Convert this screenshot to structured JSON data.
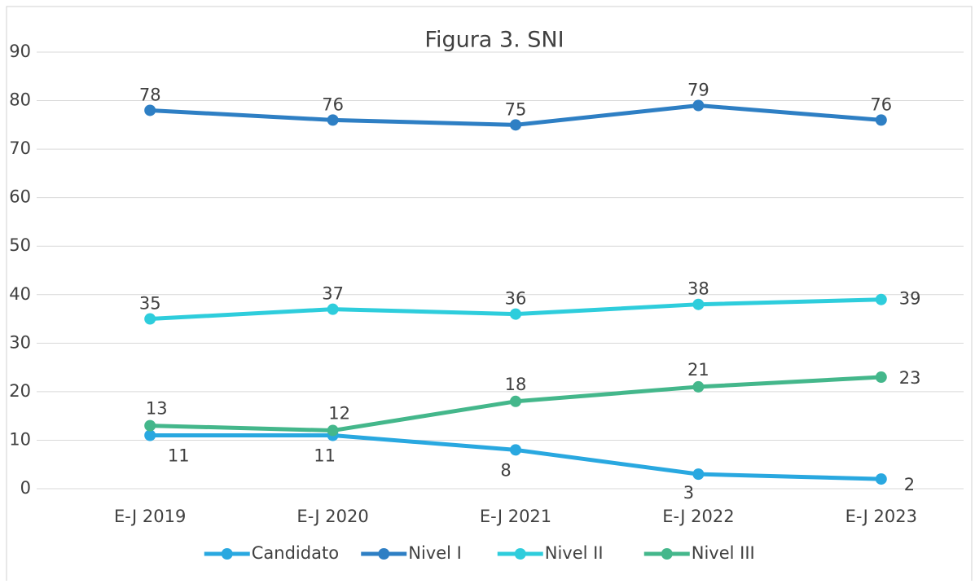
{
  "chart_data": {
    "type": "line",
    "title": "Figura 3. SNI",
    "categories": [
      "E-J 2019",
      "E-J 2020",
      "E-J 2021",
      "E-J 2022",
      "E-J 2023"
    ],
    "series": [
      {
        "name": "Candidato",
        "color": "#29a8e0",
        "values": [
          11,
          11,
          8,
          3,
          2
        ]
      },
      {
        "name": "Nivel I",
        "color": "#2e7fc4",
        "values": [
          78,
          76,
          75,
          79,
          76
        ]
      },
      {
        "name": "Nivel II",
        "color": "#2ecddc",
        "values": [
          35,
          37,
          36,
          38,
          39
        ]
      },
      {
        "name": "Nivel III",
        "color": "#44b78b",
        "values": [
          13,
          12,
          18,
          21,
          23
        ]
      }
    ],
    "ylim": [
      0,
      90
    ],
    "yticks": [
      0,
      10,
      20,
      30,
      40,
      50,
      60,
      70,
      80,
      90
    ],
    "grid": true,
    "legend": "bottom"
  }
}
